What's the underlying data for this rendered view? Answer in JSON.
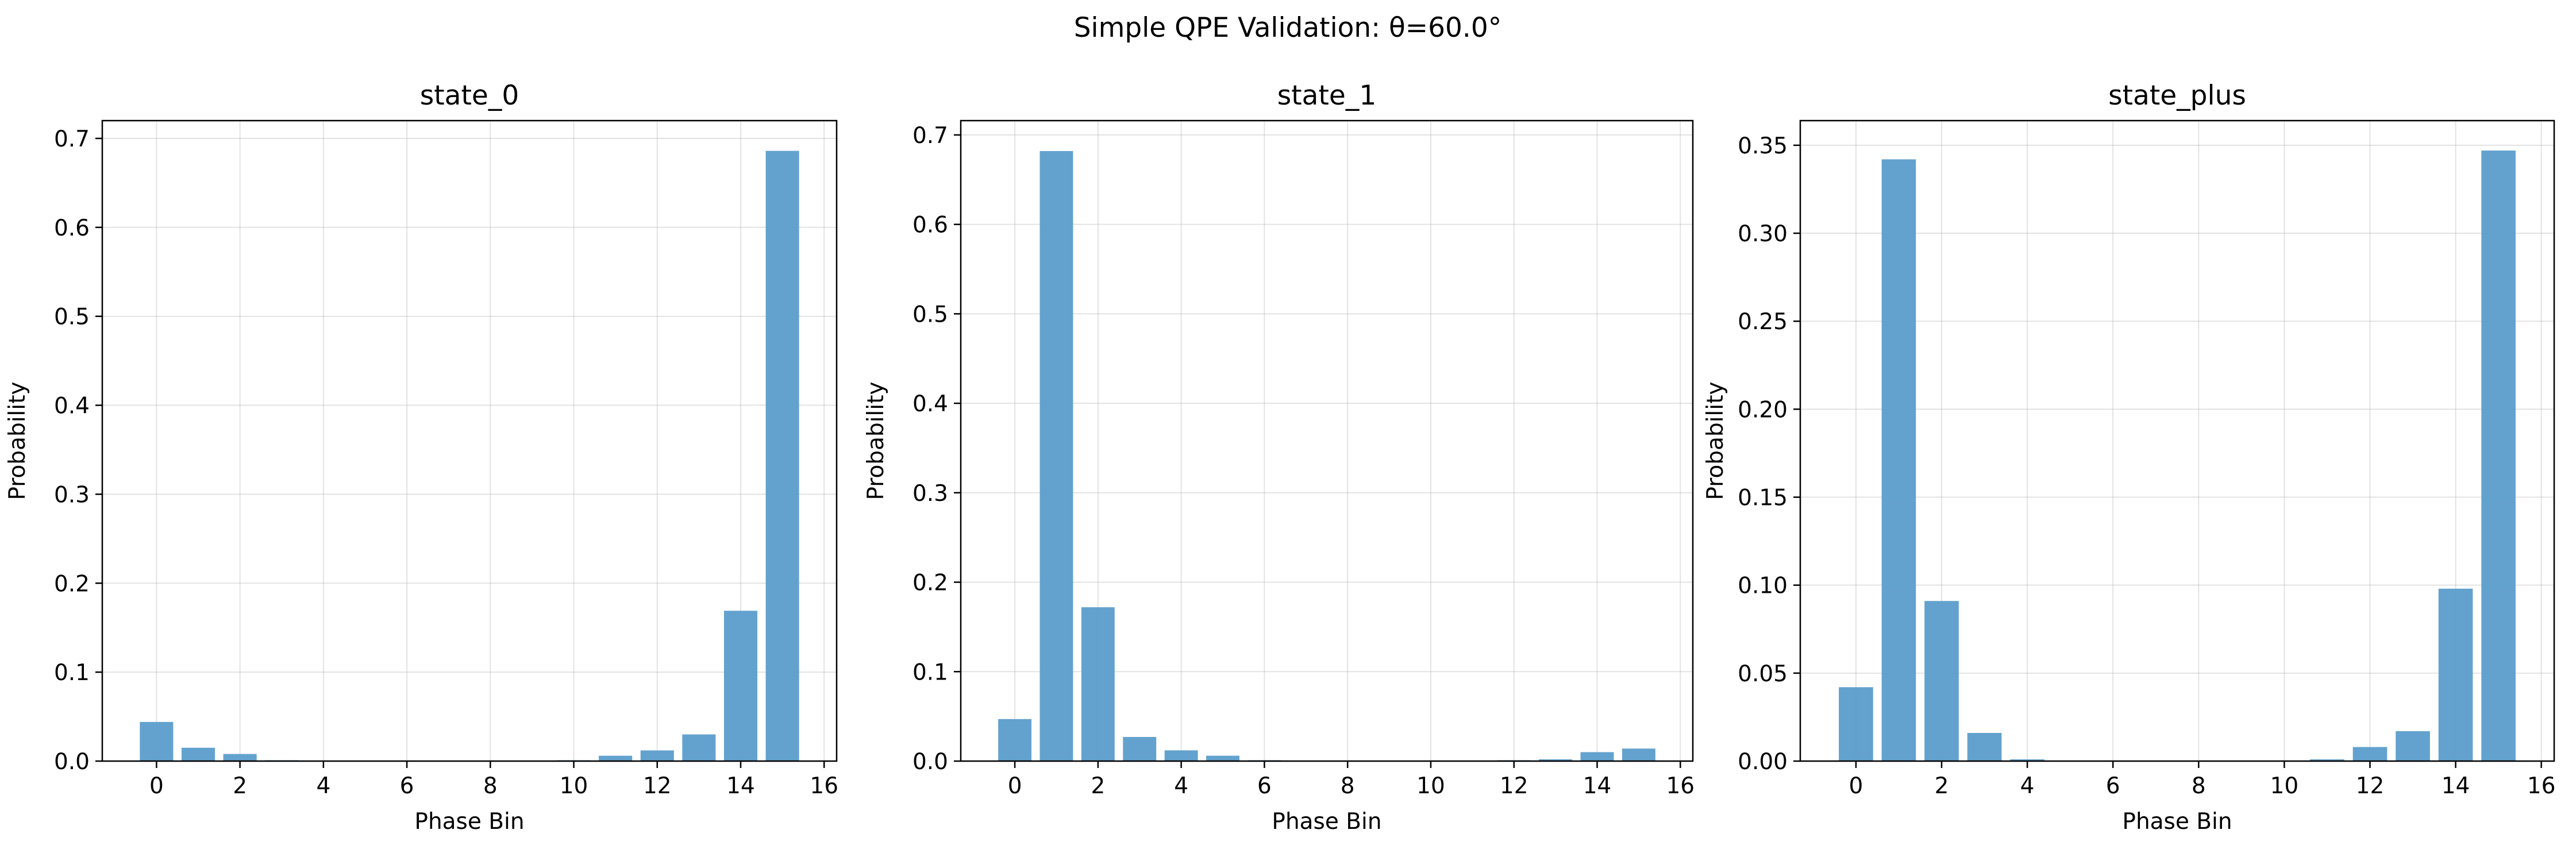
{
  "figure_title": "Simple QPE Validation: θ=60.0°",
  "colors": {
    "bar": "#5B9DCB",
    "grid": "#b0b0b0",
    "axes": "#000000"
  },
  "chart_data": [
    {
      "type": "bar",
      "title": "state_0",
      "xlabel": "Phase Bin",
      "ylabel": "Probability",
      "categories": [
        0,
        1,
        2,
        3,
        4,
        5,
        6,
        7,
        8,
        9,
        10,
        11,
        12,
        13,
        14,
        15
      ],
      "values": [
        0.044,
        0.015,
        0.008,
        0.001,
        0.0,
        0.0,
        0.0,
        0.0,
        0.0,
        0.0,
        0.001,
        0.006,
        0.012,
        0.03,
        0.169,
        0.686
      ],
      "xlim": [
        -1.3,
        16.3
      ],
      "ylim": [
        0,
        0.72
      ],
      "xticks": [
        0,
        2,
        4,
        6,
        8,
        10,
        12,
        14,
        16
      ],
      "yticks": [
        0.0,
        0.1,
        0.2,
        0.3,
        0.4,
        0.5,
        0.6,
        0.7
      ],
      "ytick_labels": [
        "0.0",
        "0.1",
        "0.2",
        "0.3",
        "0.4",
        "0.5",
        "0.6",
        "0.7"
      ],
      "grid": true
    },
    {
      "type": "bar",
      "title": "state_1",
      "xlabel": "Phase Bin",
      "ylabel": "Probability",
      "categories": [
        0,
        1,
        2,
        3,
        4,
        5,
        6,
        7,
        8,
        9,
        10,
        11,
        12,
        13,
        14,
        15
      ],
      "values": [
        0.047,
        0.682,
        0.172,
        0.027,
        0.012,
        0.006,
        0.001,
        0.0,
        0.0,
        0.0,
        0.0,
        0.0,
        0.001,
        0.002,
        0.01,
        0.014
      ],
      "xlim": [
        -1.3,
        16.3
      ],
      "ylim": [
        0,
        0.716
      ],
      "xticks": [
        0,
        2,
        4,
        6,
        8,
        10,
        12,
        14,
        16
      ],
      "yticks": [
        0.0,
        0.1,
        0.2,
        0.3,
        0.4,
        0.5,
        0.6,
        0.7
      ],
      "ytick_labels": [
        "0.0",
        "0.1",
        "0.2",
        "0.3",
        "0.4",
        "0.5",
        "0.6",
        "0.7"
      ],
      "grid": true
    },
    {
      "type": "bar",
      "title": "state_plus",
      "xlabel": "Phase Bin",
      "ylabel": "Probability",
      "categories": [
        0,
        1,
        2,
        3,
        4,
        5,
        6,
        7,
        8,
        9,
        10,
        11,
        12,
        13,
        14,
        15
      ],
      "values": [
        0.042,
        0.342,
        0.091,
        0.016,
        0.001,
        0.0,
        0.0,
        0.0,
        0.0,
        0.0,
        0.0,
        0.001,
        0.008,
        0.017,
        0.098,
        0.347
      ],
      "xlim": [
        -1.3,
        16.3
      ],
      "ylim": [
        0,
        0.364
      ],
      "xticks": [
        0,
        2,
        4,
        6,
        8,
        10,
        12,
        14,
        16
      ],
      "yticks": [
        0.0,
        0.05,
        0.1,
        0.15,
        0.2,
        0.25,
        0.3,
        0.35
      ],
      "ytick_labels": [
        "0.00",
        "0.05",
        "0.10",
        "0.15",
        "0.20",
        "0.25",
        "0.30",
        "0.35"
      ],
      "grid": true
    }
  ]
}
